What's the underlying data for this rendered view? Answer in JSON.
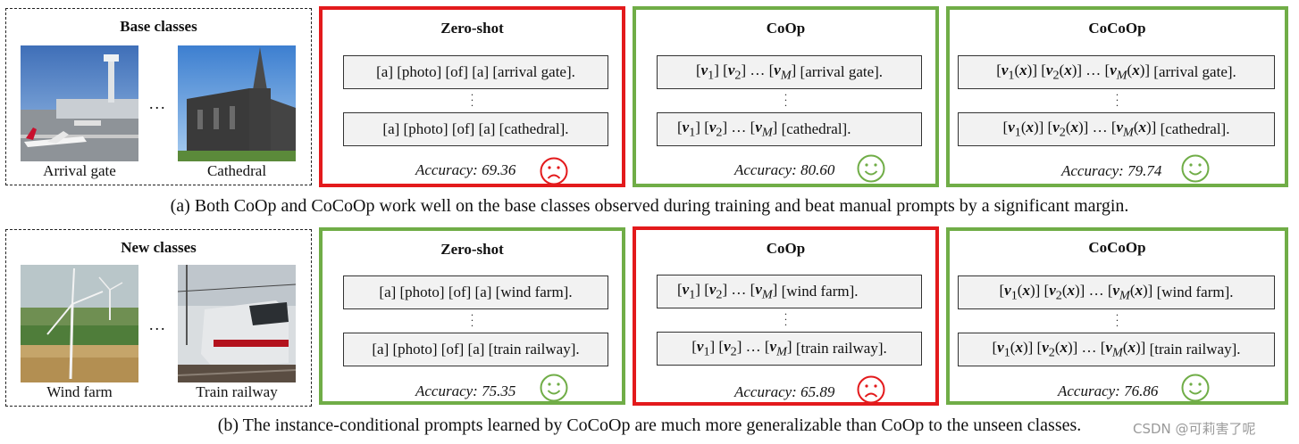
{
  "rows": [
    {
      "class_box": {
        "title": "Base classes",
        "images": [
          {
            "label": "Arrival gate",
            "icon": "airport-photo"
          },
          {
            "label": "Cathedral",
            "icon": "cathedral-photo"
          }
        ],
        "ellipsis": "..."
      },
      "methods": [
        {
          "title": "Zero-shot",
          "status": "bad",
          "prompt_top": "[a] [photo] [of] [a] [arrival gate].",
          "prompt_bottom": "[a] [photo] [of] [a] [cathedral].",
          "accuracy_label": "Accuracy:",
          "accuracy_value": "69.36",
          "face": "sad-face-icon"
        },
        {
          "title": "CoOp",
          "status": "good",
          "prompt_top_class": "[arrival gate].",
          "prompt_bottom_class": "[cathedral].",
          "accuracy_label": "Accuracy:",
          "accuracy_value": "80.60",
          "face": "happy-face-icon"
        },
        {
          "title": "CoCoOp",
          "status": "good",
          "prompt_top_class": "[arrival gate].",
          "prompt_bottom_class": "[cathedral].",
          "accuracy_label": "Accuracy:",
          "accuracy_value": "79.74",
          "face": "happy-face-icon"
        }
      ],
      "caption": "(a) Both CoOp and CoCoOp work well on the base classes observed during training and beat manual prompts by a significant margin."
    },
    {
      "class_box": {
        "title": "New classes",
        "images": [
          {
            "label": "Wind farm",
            "icon": "wind-farm-photo"
          },
          {
            "label": "Train railway",
            "icon": "train-photo"
          }
        ],
        "ellipsis": "..."
      },
      "methods": [
        {
          "title": "Zero-shot",
          "status": "good",
          "prompt_top": "[a] [photo] [of] [a] [wind farm].",
          "prompt_bottom": "[a] [photo] [of] [a] [train railway].",
          "accuracy_label": "Accuracy:",
          "accuracy_value": "75.35",
          "face": "happy-face-icon"
        },
        {
          "title": "CoOp",
          "status": "bad",
          "prompt_top_class": "[wind farm].",
          "prompt_bottom_class": "[train railway].",
          "accuracy_label": "Accuracy:",
          "accuracy_value": "65.89",
          "face": "sad-face-icon"
        },
        {
          "title": "CoCoOp",
          "status": "good",
          "prompt_top_class": "[wind farm].",
          "prompt_bottom_class": "[train railway].",
          "accuracy_label": "Accuracy:",
          "accuracy_value": "76.86",
          "face": "happy-face-icon"
        }
      ],
      "caption": "(b) The instance-conditional prompts learned by CoCoOp are much more generalizable than CoOp to the unseen classes."
    }
  ],
  "colors": {
    "good": "#70ad47",
    "bad": "#e31a1c"
  },
  "watermark": "CSDN @可莉害了呢"
}
